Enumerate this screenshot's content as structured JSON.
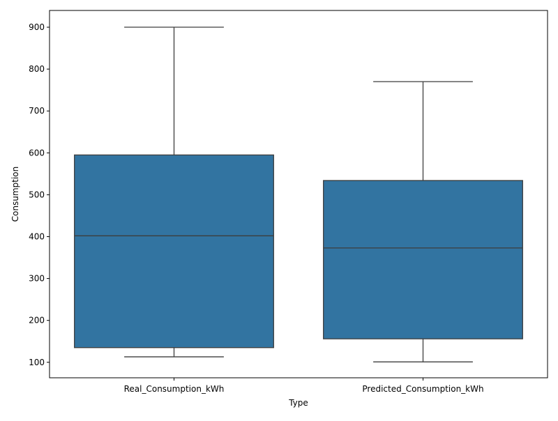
{
  "chart_data": {
    "type": "box",
    "title": "",
    "xlabel": "Type",
    "ylabel": "Consumption",
    "categories": [
      "Real_Consumption_kWh",
      "Predicted_Consumption_kWh"
    ],
    "boxes": [
      {
        "name": "Real_Consumption_kWh",
        "whisker_low": 113,
        "q1": 135,
        "median": 402,
        "q3": 595,
        "whisker_high": 900
      },
      {
        "name": "Predicted_Consumption_kWh",
        "whisker_low": 101,
        "q1": 156,
        "median": 373,
        "q3": 534,
        "whisker_high": 770
      }
    ],
    "ylim": [
      63,
      940
    ],
    "yticks": [
      100,
      200,
      300,
      400,
      500,
      600,
      700,
      800,
      900
    ],
    "grid": false,
    "legend": "none",
    "colors": {
      "box_fill": "#3274a1",
      "line": "#3d3d3d",
      "axis": "#000000"
    }
  }
}
